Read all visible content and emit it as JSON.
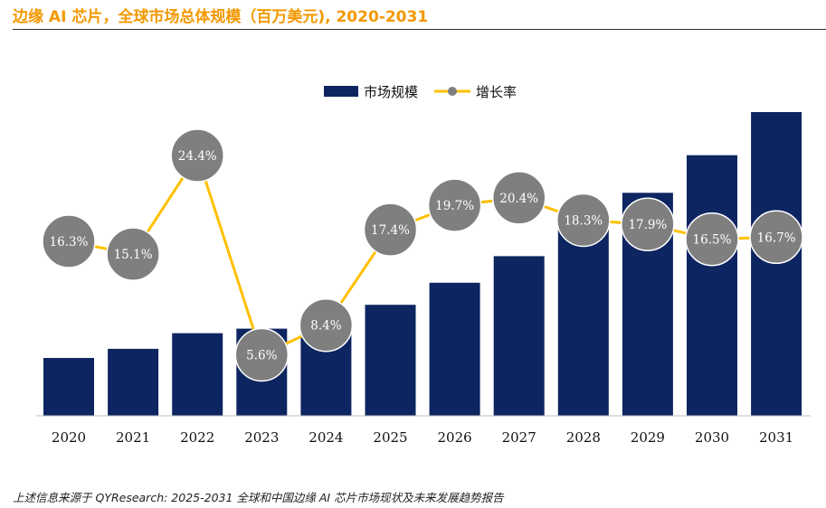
{
  "title": "边缘 AI 芯片，全球市场总体规模（百万美元), 2020-2031",
  "source": "上述信息来源于 QYResearch: 2025-2031 全球和中国边缘 AI 芯片市场现状及未来发展趋势报告",
  "colors": {
    "title": "#F39800",
    "bar": "#0D2560",
    "line": "#FFC000",
    "marker": "#7F7F7F",
    "marker_text": "#FFFFFF"
  },
  "chart_data": {
    "type": "bar",
    "categories": [
      "2020",
      "2021",
      "2022",
      "2023",
      "2024",
      "2025",
      "2026",
      "2027",
      "2028",
      "2029",
      "2030",
      "2031"
    ],
    "series": [
      {
        "name": "市场规模",
        "type": "bar",
        "values": [
          63,
          73,
          90,
          95,
          103,
          121,
          145,
          174,
          206,
          243,
          284,
          331
        ]
      },
      {
        "name": "增长率",
        "type": "line",
        "values": [
          16.3,
          15.1,
          24.4,
          5.6,
          8.4,
          17.4,
          19.7,
          20.4,
          18.3,
          17.9,
          16.5,
          16.7
        ],
        "labels": [
          "16.3%",
          "15.1%",
          "24.4%",
          "5.6%",
          "8.4%",
          "17.4%",
          "19.7%",
          "20.4%",
          "18.3%",
          "17.9%",
          "16.5%",
          "16.7%"
        ]
      }
    ],
    "legend_position": "top-center",
    "grid": false,
    "y_axis_visible": false
  }
}
